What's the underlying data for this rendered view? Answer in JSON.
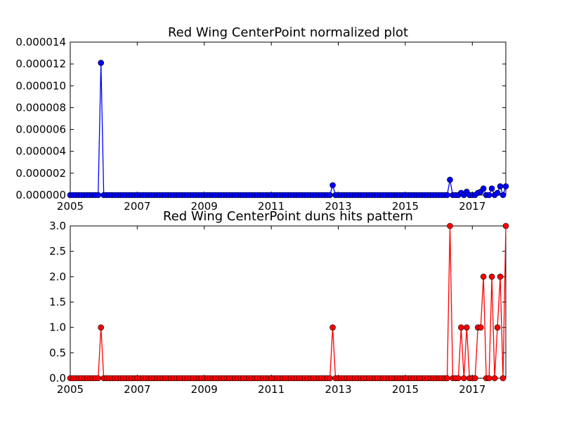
{
  "chart_data": [
    {
      "type": "line",
      "title": "Red Wing CenterPoint normalized plot",
      "xlabel": "",
      "ylabel": "",
      "xlim": [
        2005.0,
        2018.0
      ],
      "ylim": [
        0,
        1.4e-05
      ],
      "xticks": [
        "2005",
        "2007",
        "2009",
        "2011",
        "2013",
        "2015",
        "2017"
      ],
      "yticks": [
        "0.000000",
        "0.000002",
        "0.000004",
        "0.000006",
        "0.000008",
        "0.000010",
        "0.000012",
        "0.000014"
      ],
      "grid": false,
      "color": "#0000ff",
      "series": [
        {
          "x": [
            2005.92,
            2012.83,
            2016.33,
            2016.67,
            2016.83,
            2017.17,
            2017.25,
            2017.33,
            2017.58,
            2017.75,
            2017.83,
            2018.0
          ],
          "y": [
            1.21e-05,
            9e-07,
            1.4e-06,
            2e-07,
            3e-07,
            2e-07,
            3e-07,
            6e-07,
            6e-07,
            2e-07,
            8e-07,
            8e-07
          ]
        }
      ]
    },
    {
      "type": "line",
      "title": "Red Wing CenterPoint duns hits pattern",
      "xlabel": "",
      "ylabel": "",
      "xlim": [
        2005.0,
        2018.0
      ],
      "ylim": [
        0,
        3.0
      ],
      "xticks": [
        "2005",
        "2007",
        "2009",
        "2011",
        "2013",
        "2015",
        "2017"
      ],
      "yticks": [
        "0.0",
        "0.5",
        "1.0",
        "1.5",
        "2.0",
        "2.5",
        "3.0"
      ],
      "grid": false,
      "color": "#ff0000",
      "series": [
        {
          "x": [
            2005.92,
            2012.83,
            2016.33,
            2016.67,
            2016.83,
            2017.17,
            2017.25,
            2017.33,
            2017.58,
            2017.75,
            2017.83,
            2018.0
          ],
          "y": [
            1,
            1,
            3,
            1,
            1,
            1,
            1,
            2,
            2,
            1,
            2,
            3
          ]
        }
      ]
    }
  ]
}
